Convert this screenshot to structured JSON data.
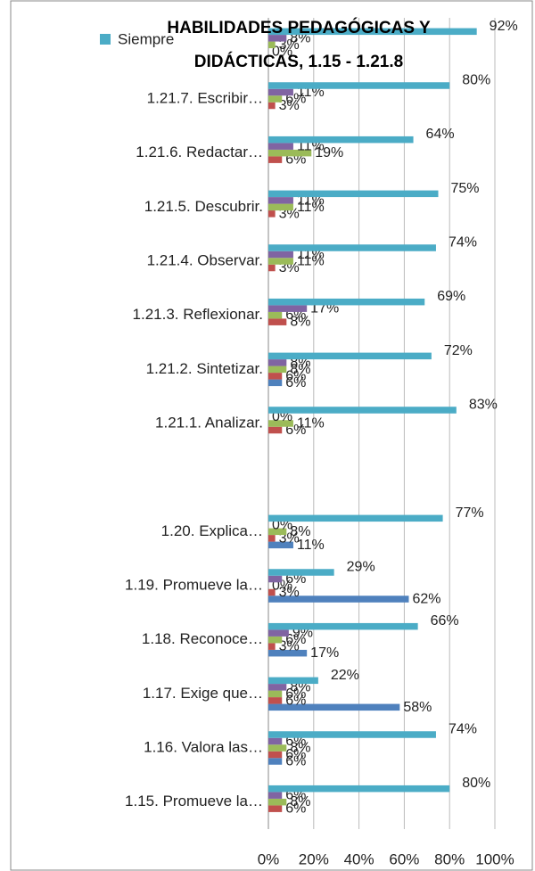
{
  "chart_data": {
    "type": "bar",
    "orientation": "horizontal",
    "title": [
      "HABILIDADES PEDAGÓGICAS Y",
      "DIDÁCTICAS, 1.15 - 1.21.8"
    ],
    "categories": [
      null,
      "1.21.7.  Escribir…",
      "1.21.6.  Redactar…",
      "1.21.5.  Descubrir.",
      "1.21.4.  Observar.",
      "1.21.3.  Reflexionar.",
      "1.21.2.  Sintetizar.",
      "1.21.1.  Analizar.",
      null,
      "1.20.  Explica…",
      "1.19.  Promueve la…",
      "1.18.  Reconoce…",
      "1.17.  Exige que…",
      "1.16.  Valora las…",
      "1.15.  Promueve la…"
    ],
    "series": [
      {
        "color": "#4f81bd",
        "values": [
          null,
          0,
          0,
          0,
          0,
          0,
          6,
          0,
          null,
          11,
          62,
          17,
          58,
          6,
          0
        ],
        "value_labels": [
          null,
          null,
          null,
          null,
          null,
          null,
          "6%",
          null,
          null,
          "11%",
          "62%",
          "17%",
          "58%",
          "6%",
          null
        ]
      },
      {
        "color": "#c0504d",
        "values": [
          0,
          3,
          6,
          3,
          3,
          8,
          6,
          6,
          null,
          3,
          3,
          3,
          6,
          6,
          6
        ],
        "value_labels": [
          "0%",
          "3%",
          "6%",
          "3%",
          "3%",
          "8%",
          "6%",
          "6%",
          null,
          "3%",
          "3%",
          "3%",
          "6%",
          "6%",
          "6%"
        ]
      },
      {
        "color": "#9bbb59",
        "values": [
          3,
          6,
          19,
          11,
          11,
          6,
          8,
          11,
          null,
          8,
          0,
          6,
          6,
          8,
          8
        ],
        "value_labels": [
          "3%",
          "6%",
          "19%",
          "11%",
          "11%",
          "6%",
          "8%",
          "11%",
          null,
          "8%",
          "0%",
          "6%",
          "6%",
          "8%",
          "8%"
        ]
      },
      {
        "color": "#8064a2",
        "values": [
          8,
          11,
          11,
          11,
          11,
          17,
          8,
          0,
          null,
          0,
          6,
          9,
          8,
          6,
          6
        ],
        "value_labels": [
          "8%",
          "11%",
          "11%",
          "11%",
          "11%",
          "17%",
          "8%",
          "0%",
          null,
          "0%",
          "6%",
          "9%",
          "8%",
          "6%",
          "6%"
        ]
      },
      {
        "name": "Siempre",
        "color": "#4bacc6",
        "values": [
          92,
          80,
          64,
          75,
          74,
          69,
          72,
          83,
          null,
          77,
          29,
          66,
          22,
          74,
          80
        ],
        "value_labels": [
          "92%",
          "80%",
          "64%",
          "75%",
          "74%",
          "69%",
          "72%",
          "83%",
          null,
          "77%",
          "29%",
          "66%",
          "22%",
          "74%",
          "80%"
        ]
      }
    ],
    "xlim": [
      0,
      100
    ],
    "xticks": [
      {
        "value": 0,
        "label": "0%"
      },
      {
        "value": 20,
        "label": "20%"
      },
      {
        "value": 40,
        "label": "40%"
      },
      {
        "value": 60,
        "label": "60%"
      },
      {
        "value": 80,
        "label": "80%"
      },
      {
        "value": 100,
        "label": "100%"
      }
    ],
    "grid": true
  }
}
